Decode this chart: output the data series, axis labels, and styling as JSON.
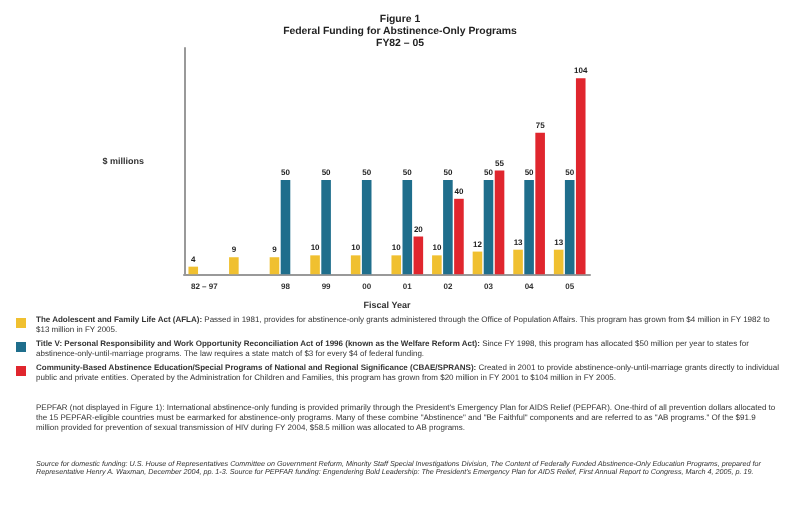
{
  "chart_data": {
    "type": "bar",
    "title": "Federal Funding for Abstinence-Only Programs",
    "subtitle": "FY82 – 05",
    "xlabel": "Fiscal Year",
    "ylabel": "$ millions",
    "categories": [
      "82 – 97",
      null,
      "98",
      "99",
      "00",
      "01",
      "02",
      "03",
      "04",
      "05"
    ],
    "series": [
      {
        "name": "The Adolescent and Family Life Act (AFLA):",
        "color": "#f0c030",
        "values": [
          4,
          9,
          9,
          10,
          10,
          10,
          10,
          12,
          13,
          13
        ]
      },
      {
        "name": "Title V:  Personal Responsibility and Work Opportunity Reconciliation Act of 1996 (known as the Welfare Reform Act):",
        "color": "#1f6e8c",
        "values": [
          null,
          null,
          50,
          50,
          50,
          50,
          50,
          50,
          50,
          50
        ]
      },
      {
        "name": "Community-Based Abstinence Education/Special Programs of National and Regional Significance (CBAE/SPRANS):",
        "color": "#e0262e",
        "values": [
          null,
          null,
          null,
          null,
          null,
          20,
          40,
          55,
          75,
          104
        ]
      }
    ],
    "annotations": [
      "Figure 1",
      "Passed in 1981, provides for abstinence-only grants administered through the Office of Population Affairs. This program has grown from $4 million in FY 1982 to $13 million in FY 2005.",
      "Since FY 1998, this program has allocated $50 million per year to states for abstinence-only-until-marriage programs.  The law requires a state match of $3 for every $4 of federal funding.",
      "Created in 2001 to provide abstinence-only-until-marriage grants directly to individual public and private entities.  Operated by the Administration for Children and Families, this program has grown from $20 million in FY 2001 to $104 million in FY 2005.",
      "PEPFAR (not displayed in Figure 1):  International abstinence-only funding is provided primarily through the President's Emergency Plan for AIDS Relief (PEPFAR).  One-third of all prevention dollars allocated to the 15 PEPFAR-eligible countries must be earmarked for abstinence-only programs.  Many of these combine \"Abstinence\" and \"Be Faithful\" components and are referred to as \"AB programs.\"  Of the $91.9 million provided for prevention of sexual transmission of HIV during FY 2004, $58.5 million was allocated to AB programs.",
      "Source for domestic funding: U.S. House of Representatives Committee on Government Reform, Minority Staff Special Investigations Division, The Content of Federally Funded Abstinence-Only Education Programs, prepared for Representative Henry A. Waxman, December 2004, pp. 1-3. Source for PEPFAR funding: Engendering Bold Leadership: The President's Emergency Plan for AIDS Relief, First Annual Report to Congress, March 4, 2005, p. 19."
    ],
    "data_labels": true,
    "legend": "bottom",
    "grid": false
  }
}
